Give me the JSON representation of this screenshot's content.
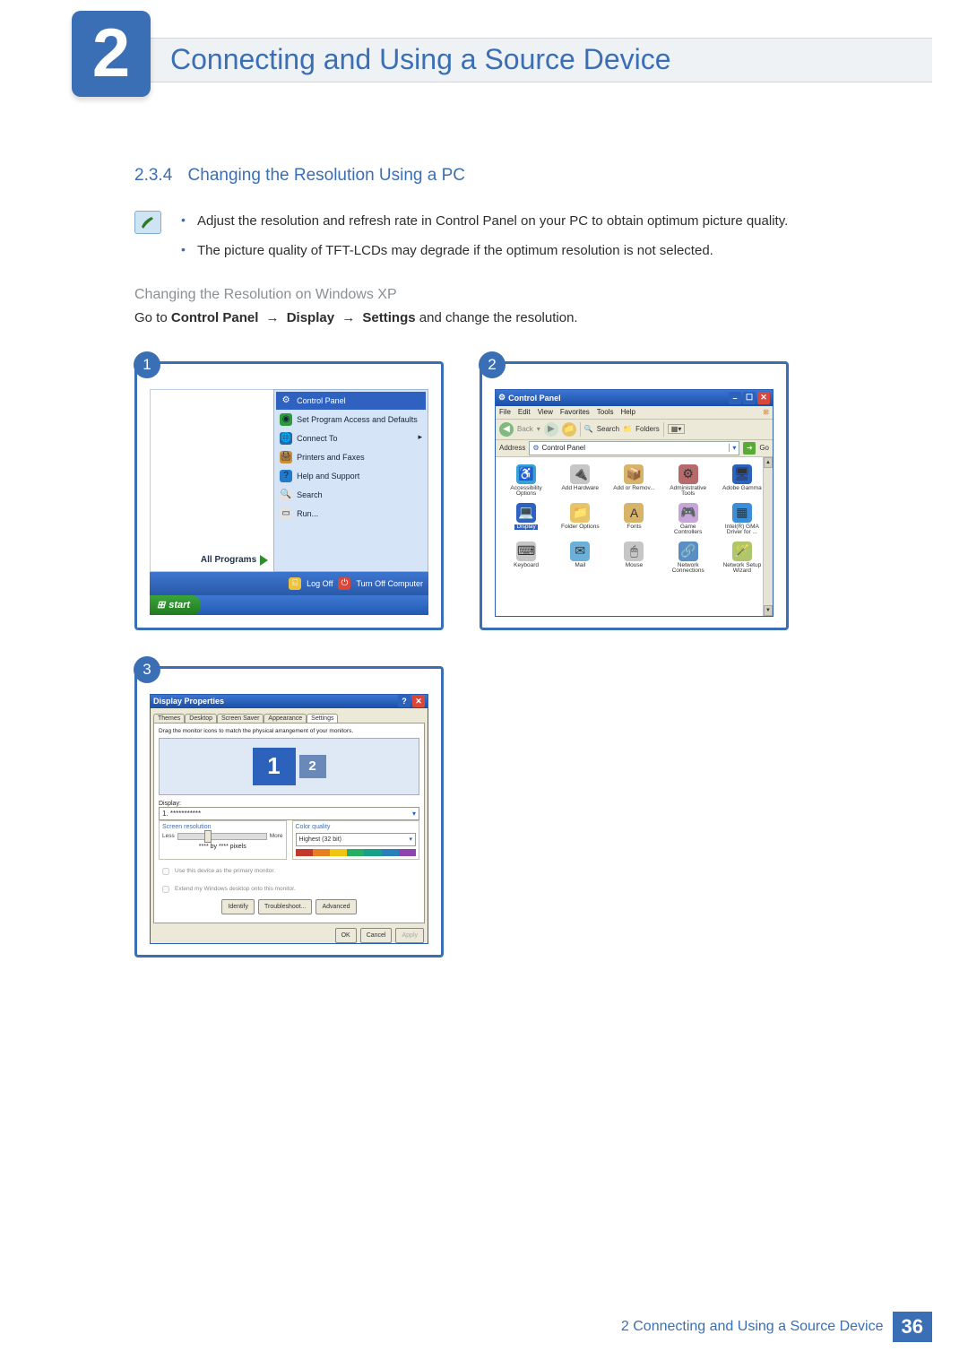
{
  "chapter": {
    "num": "2",
    "title": "Connecting and Using a Source Device"
  },
  "section": {
    "num": "2.3.4",
    "title": "Changing the Resolution Using a PC"
  },
  "notes": {
    "b1": "Adjust the resolution and refresh rate in Control Panel on your PC to obtain optimum picture quality.",
    "b2": "The picture quality of TFT-LCDs may degrade if the optimum resolution is not selected."
  },
  "subhead": "Changing the Resolution on Windows XP",
  "instr": {
    "pre": "Go to ",
    "p1": "Control Panel",
    "p2": "Display",
    "p3": "Settings",
    "post": " and change the resolution.",
    "arrow": "→"
  },
  "steps": {
    "s1": "1",
    "s2": "2",
    "s3": "3"
  },
  "startmenu": {
    "items": [
      {
        "label": "Control Panel",
        "icon_bg": "#2f62c0",
        "glyph": "⚙",
        "selected": true
      },
      {
        "label": "Set Program Access and Defaults",
        "icon_bg": "#2f9a3c",
        "glyph": "◉"
      },
      {
        "label": "Connect To",
        "icon_bg": "#1f6aa6",
        "glyph": "🌐",
        "submenu": true
      },
      {
        "label": "Printers and Faxes",
        "icon_bg": "#c98f3c",
        "glyph": "🖨"
      },
      {
        "label": "Help and Support",
        "icon_bg": "#1f7acb",
        "glyph": "?"
      },
      {
        "label": "Search",
        "icon_bg": "#e2e2e2",
        "glyph": "🔍"
      },
      {
        "label": "Run...",
        "icon_bg": "#e2e2e2",
        "glyph": "▭"
      }
    ],
    "all_programs": "All Programs",
    "logoff": "Log Off",
    "turnoff": "Turn Off Computer",
    "start": "start"
  },
  "cp": {
    "title": "Control Panel",
    "menus": [
      "File",
      "Edit",
      "View",
      "Favorites",
      "Tools",
      "Help"
    ],
    "tb": {
      "back": "Back",
      "search": "Search",
      "folders": "Folders"
    },
    "addr_label": "Address",
    "addr_value": "Control Panel",
    "go": "Go",
    "items": [
      {
        "label": "Accessibility Options",
        "glyph": "♿",
        "bg": "#3aa0d8"
      },
      {
        "label": "Add Hardware",
        "glyph": "🔌",
        "bg": "#c6c6c6"
      },
      {
        "label": "Add or Remov...",
        "glyph": "📦",
        "bg": "#d8b36a"
      },
      {
        "label": "Administrative Tools",
        "glyph": "⚙",
        "bg": "#b66a6a"
      },
      {
        "label": "Adobe Gamma",
        "glyph": "🖥",
        "bg": "#2d62bc"
      },
      {
        "label": "Display",
        "glyph": "💻",
        "bg": "#2f62c0",
        "selected": true
      },
      {
        "label": "Folder Options",
        "glyph": "📁",
        "bg": "#e6c46a"
      },
      {
        "label": "Fonts",
        "glyph": "A",
        "bg": "#d8b36a"
      },
      {
        "label": "Game Controllers",
        "glyph": "🎮",
        "bg": "#c6a6d8"
      },
      {
        "label": "Intel(R) GMA Driver for ...",
        "glyph": "▦",
        "bg": "#3a8fd8"
      },
      {
        "label": "Keyboard",
        "glyph": "⌨",
        "bg": "#c6c6c6"
      },
      {
        "label": "Mail",
        "glyph": "✉",
        "bg": "#6ab0d8"
      },
      {
        "label": "Mouse",
        "glyph": "🖱",
        "bg": "#c6c6c6"
      },
      {
        "label": "Network Connections",
        "glyph": "🔗",
        "bg": "#5a8fc6"
      },
      {
        "label": "Network Setup Wizard",
        "glyph": "🪄",
        "bg": "#b0c66a"
      }
    ]
  },
  "dp": {
    "title": "Display Properties",
    "tabs": [
      "Themes",
      "Desktop",
      "Screen Saver",
      "Appearance",
      "Settings"
    ],
    "active_tab": 4,
    "drag_text": "Drag the monitor icons to match the physical arrangement of your monitors.",
    "mon1": "1",
    "mon2": "2",
    "display_label": "Display:",
    "display_value": "1. ***********",
    "sr_label": "Screen resolution",
    "sr_less": "Less",
    "sr_more": "More",
    "sr_value": "**** by **** pixels",
    "cq_label": "Color quality",
    "cq_value": "Highest (32 bit)",
    "chk1": "Use this device as the primary monitor.",
    "chk2": "Extend my Windows desktop onto this monitor.",
    "identify": "Identify",
    "troubleshoot": "Troubleshoot...",
    "advanced": "Advanced",
    "ok": "OK",
    "cancel": "Cancel",
    "apply": "Apply",
    "color_bar": [
      "#c0392b",
      "#e67e22",
      "#f1c40f",
      "#27ae60",
      "#16a085",
      "#2980b9",
      "#8e44ad"
    ]
  },
  "footer": {
    "text": "2 Connecting and Using a Source Device",
    "page": "36"
  }
}
